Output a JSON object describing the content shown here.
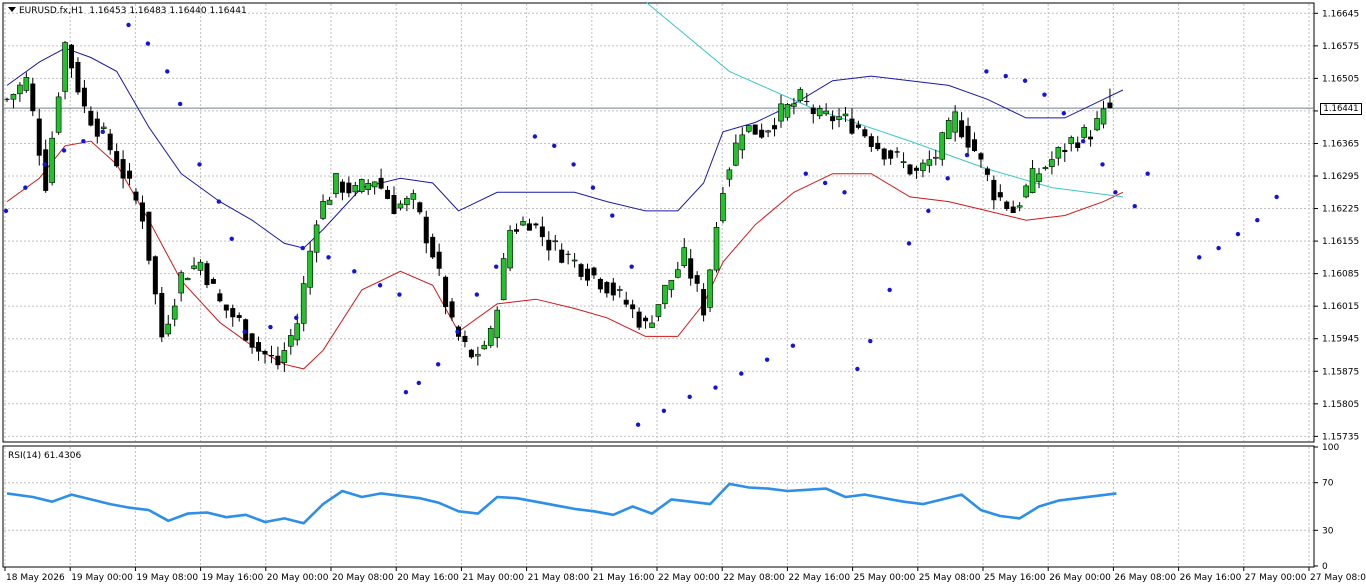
{
  "header": {
    "symbol": "EURUSD.fx",
    "timeframe": "H1",
    "ohlc_text": "1.16453 1.16483 1.16440 1.16441"
  },
  "current_price_label": "1.16441",
  "colors": {
    "background": "#ffffff",
    "grid": "#c0c0c0",
    "bull_body": "#22c22b",
    "bear_body": "#000000",
    "wick": "#000000",
    "upper_band": "#1a1aa6",
    "lower_band": "#d01818",
    "slow_ma": "#3cc8c8",
    "psar": "#1515d8",
    "rsi_line": "#2d8fe8",
    "current_price_line": "#708090"
  },
  "rsi": {
    "label": "RSI(14) 61.4306",
    "axis_ticks": [
      "100",
      "70",
      "30",
      "0"
    ]
  },
  "chart_data": {
    "type": "candlestick",
    "symbol": "EURUSD.fx",
    "timeframe": "H1",
    "price_axis_ticks": [
      "1.16645",
      "1.16575",
      "1.16505",
      "1.16435",
      "1.16365",
      "1.16295",
      "1.16225",
      "1.16155",
      "1.16085",
      "1.16015",
      "1.15945",
      "1.15875",
      "1.15805",
      "1.15735"
    ],
    "ylim": [
      1.15725,
      1.16665
    ],
    "time_axis_labels": [
      "18 May 2026",
      "19 May 00:00",
      "19 May 08:00",
      "19 May 16:00",
      "20 May 00:00",
      "20 May 08:00",
      "20 May 16:00",
      "21 May 00:00",
      "21 May 08:00",
      "21 May 16:00",
      "22 May 00:00",
      "22 May 08:00",
      "22 May 16:00",
      "25 May 00:00",
      "25 May 08:00",
      "25 May 16:00",
      "26 May 00:00",
      "26 May 08:00",
      "26 May 16:00",
      "27 May 00:00",
      "27 May 08:00"
    ],
    "last_ohlc": {
      "open": 1.16453,
      "high": 1.16483,
      "low": 1.1644,
      "close": 1.16441
    },
    "close_points": [
      [
        0,
        1.1646
      ],
      [
        3,
        1.165
      ],
      [
        6,
        1.1628
      ],
      [
        9,
        1.1658
      ],
      [
        12,
        1.1644
      ],
      [
        15,
        1.1638
      ],
      [
        18,
        1.163
      ],
      [
        21,
        1.1621
      ],
      [
        24,
        1.1595
      ],
      [
        27,
        1.1608
      ],
      [
        30,
        1.1611
      ],
      [
        33,
        1.1602
      ],
      [
        36,
        1.1598
      ],
      [
        39,
        1.1592
      ],
      [
        42,
        1.1589
      ],
      [
        45,
        1.1598
      ],
      [
        48,
        1.1621
      ],
      [
        51,
        1.1628
      ],
      [
        54,
        1.1626
      ],
      [
        57,
        1.1629
      ],
      [
        60,
        1.1623
      ],
      [
        63,
        1.1624
      ],
      [
        66,
        1.1613
      ],
      [
        69,
        1.1597
      ],
      [
        72,
        1.159
      ],
      [
        75,
        1.1595
      ],
      [
        78,
        1.1618
      ],
      [
        81,
        1.162
      ],
      [
        84,
        1.1615
      ],
      [
        87,
        1.1612
      ],
      [
        90,
        1.1609
      ],
      [
        93,
        1.1606
      ],
      [
        96,
        1.1602
      ],
      [
        99,
        1.1597
      ],
      [
        102,
        1.1605
      ],
      [
        105,
        1.1612
      ],
      [
        108,
        1.1601
      ],
      [
        111,
        1.1628
      ],
      [
        114,
        1.164
      ],
      [
        117,
        1.1639
      ],
      [
        120,
        1.1643
      ],
      [
        123,
        1.1646
      ],
      [
        126,
        1.1642
      ],
      [
        129,
        1.1642
      ],
      [
        132,
        1.164
      ],
      [
        135,
        1.1636
      ],
      [
        138,
        1.1633
      ],
      [
        141,
        1.163
      ],
      [
        144,
        1.1634
      ],
      [
        147,
        1.1642
      ],
      [
        150,
        1.1635
      ],
      [
        153,
        1.1626
      ],
      [
        156,
        1.1622
      ],
      [
        159,
        1.1629
      ],
      [
        162,
        1.1633
      ],
      [
        165,
        1.1637
      ],
      [
        168,
        1.1639
      ],
      [
        171,
        1.1644
      ]
    ],
    "upper_band_points": [
      [
        0,
        1.1649
      ],
      [
        5,
        1.1654
      ],
      [
        9,
        1.1657
      ],
      [
        13,
        1.1655
      ],
      [
        17,
        1.1652
      ],
      [
        22,
        1.164
      ],
      [
        27,
        1.163
      ],
      [
        33,
        1.1624
      ],
      [
        38,
        1.162
      ],
      [
        43,
        1.1615
      ],
      [
        46,
        1.1614
      ],
      [
        49,
        1.1618
      ],
      [
        55,
        1.1627
      ],
      [
        61,
        1.1629
      ],
      [
        66,
        1.1628
      ],
      [
        70,
        1.1622
      ],
      [
        76,
        1.1626
      ],
      [
        82,
        1.1626
      ],
      [
        88,
        1.1626
      ],
      [
        93,
        1.1624
      ],
      [
        99,
        1.1622
      ],
      [
        104,
        1.1622
      ],
      [
        108,
        1.1628
      ],
      [
        111,
        1.1639
      ],
      [
        116,
        1.1641
      ],
      [
        122,
        1.1645
      ],
      [
        128,
        1.165
      ],
      [
        134,
        1.1651
      ],
      [
        140,
        1.165
      ],
      [
        146,
        1.1649
      ],
      [
        152,
        1.1646
      ],
      [
        158,
        1.1642
      ],
      [
        164,
        1.1642
      ],
      [
        170,
        1.1646
      ],
      [
        173,
        1.1648
      ]
    ],
    "lower_band_points": [
      [
        0,
        1.1624
      ],
      [
        5,
        1.1629
      ],
      [
        9,
        1.1636
      ],
      [
        13,
        1.1637
      ],
      [
        17,
        1.1632
      ],
      [
        22,
        1.162
      ],
      [
        27,
        1.1607
      ],
      [
        33,
        1.1598
      ],
      [
        38,
        1.1593
      ],
      [
        43,
        1.1589
      ],
      [
        46,
        1.1588
      ],
      [
        49,
        1.1592
      ],
      [
        55,
        1.1605
      ],
      [
        61,
        1.1609
      ],
      [
        66,
        1.1606
      ],
      [
        70,
        1.1596
      ],
      [
        76,
        1.1602
      ],
      [
        82,
        1.1603
      ],
      [
        88,
        1.1601
      ],
      [
        93,
        1.1599
      ],
      [
        99,
        1.1595
      ],
      [
        104,
        1.1595
      ],
      [
        108,
        1.1602
      ],
      [
        111,
        1.1611
      ],
      [
        116,
        1.1619
      ],
      [
        122,
        1.1626
      ],
      [
        128,
        1.163
      ],
      [
        134,
        1.163
      ],
      [
        140,
        1.1625
      ],
      [
        146,
        1.1624
      ],
      [
        152,
        1.1622
      ],
      [
        158,
        1.162
      ],
      [
        164,
        1.1621
      ],
      [
        170,
        1.1624
      ],
      [
        173,
        1.1626
      ]
    ],
    "slow_ma_points": [
      [
        99,
        1.1667
      ],
      [
        112,
        1.1652
      ],
      [
        125,
        1.1644
      ],
      [
        140,
        1.1637
      ],
      [
        152,
        1.1631
      ],
      [
        162,
        1.1627
      ],
      [
        173,
        1.1625
      ]
    ],
    "psar_points": [
      [
        0,
        1.1622
      ],
      [
        3,
        1.1627
      ],
      [
        6,
        1.1632
      ],
      [
        9,
        1.1635
      ],
      [
        12,
        1.1637
      ],
      [
        15,
        1.1639
      ],
      [
        19,
        1.1662
      ],
      [
        22,
        1.1658
      ],
      [
        25,
        1.1652
      ],
      [
        27,
        1.1645
      ],
      [
        30,
        1.1632
      ],
      [
        33,
        1.1624
      ],
      [
        35,
        1.1616
      ],
      [
        37,
        1.1596
      ],
      [
        41,
        1.1597
      ],
      [
        45,
        1.1599
      ],
      [
        46,
        1.1614
      ],
      [
        50,
        1.1612
      ],
      [
        54,
        1.1609
      ],
      [
        58,
        1.1606
      ],
      [
        61,
        1.1604
      ],
      [
        62,
        1.1583
      ],
      [
        64,
        1.1585
      ],
      [
        67,
        1.1589
      ],
      [
        70,
        1.1596
      ],
      [
        73,
        1.1604
      ],
      [
        76,
        1.161
      ],
      [
        82,
        1.1638
      ],
      [
        85,
        1.1636
      ],
      [
        88,
        1.1632
      ],
      [
        91,
        1.1627
      ],
      [
        94,
        1.1621
      ],
      [
        97,
        1.161
      ],
      [
        98,
        1.1576
      ],
      [
        102,
        1.1579
      ],
      [
        106,
        1.1582
      ],
      [
        110,
        1.1584
      ],
      [
        114,
        1.1587
      ],
      [
        118,
        1.159
      ],
      [
        122,
        1.1593
      ],
      [
        124,
        1.163
      ],
      [
        127,
        1.1628
      ],
      [
        130,
        1.1626
      ],
      [
        132,
        1.1588
      ],
      [
        134,
        1.1594
      ],
      [
        137,
        1.1605
      ],
      [
        140,
        1.1615
      ],
      [
        143,
        1.1622
      ],
      [
        146,
        1.1629
      ],
      [
        149,
        1.1634
      ],
      [
        152,
        1.1652
      ],
      [
        155,
        1.1651
      ],
      [
        158,
        1.165
      ],
      [
        161,
        1.1647
      ],
      [
        164,
        1.1643
      ],
      [
        167,
        1.1637
      ],
      [
        170,
        1.1632
      ],
      [
        172,
        1.1626
      ],
      [
        175,
        1.1623
      ],
      [
        177,
        1.163
      ],
      [
        185,
        1.1612
      ],
      [
        188,
        1.1614
      ],
      [
        191,
        1.1617
      ],
      [
        194,
        1.162
      ],
      [
        197,
        1.1625
      ]
    ],
    "rsi_points": [
      [
        0,
        61
      ],
      [
        4,
        58
      ],
      [
        7,
        54
      ],
      [
        10,
        60
      ],
      [
        13,
        56
      ],
      [
        16,
        52
      ],
      [
        19,
        49
      ],
      [
        22,
        47
      ],
      [
        25,
        38
      ],
      [
        28,
        44
      ],
      [
        31,
        45
      ],
      [
        34,
        41
      ],
      [
        37,
        43
      ],
      [
        40,
        37
      ],
      [
        43,
        40
      ],
      [
        46,
        36
      ],
      [
        49,
        52
      ],
      [
        52,
        63
      ],
      [
        55,
        58
      ],
      [
        58,
        61
      ],
      [
        61,
        59
      ],
      [
        64,
        57
      ],
      [
        67,
        53
      ],
      [
        70,
        46
      ],
      [
        73,
        44
      ],
      [
        76,
        58
      ],
      [
        79,
        57
      ],
      [
        82,
        54
      ],
      [
        85,
        51
      ],
      [
        88,
        48
      ],
      [
        91,
        46
      ],
      [
        94,
        43
      ],
      [
        97,
        50
      ],
      [
        100,
        44
      ],
      [
        103,
        56
      ],
      [
        106,
        54
      ],
      [
        109,
        52
      ],
      [
        112,
        69
      ],
      [
        115,
        66
      ],
      [
        118,
        65
      ],
      [
        121,
        63
      ],
      [
        124,
        64
      ],
      [
        127,
        65
      ],
      [
        130,
        58
      ],
      [
        133,
        60
      ],
      [
        136,
        57
      ],
      [
        139,
        54
      ],
      [
        142,
        52
      ],
      [
        145,
        56
      ],
      [
        148,
        60
      ],
      [
        151,
        47
      ],
      [
        154,
        42
      ],
      [
        157,
        40
      ],
      [
        160,
        50
      ],
      [
        163,
        55
      ],
      [
        166,
        57
      ],
      [
        169,
        59
      ],
      [
        172,
        61
      ]
    ]
  }
}
